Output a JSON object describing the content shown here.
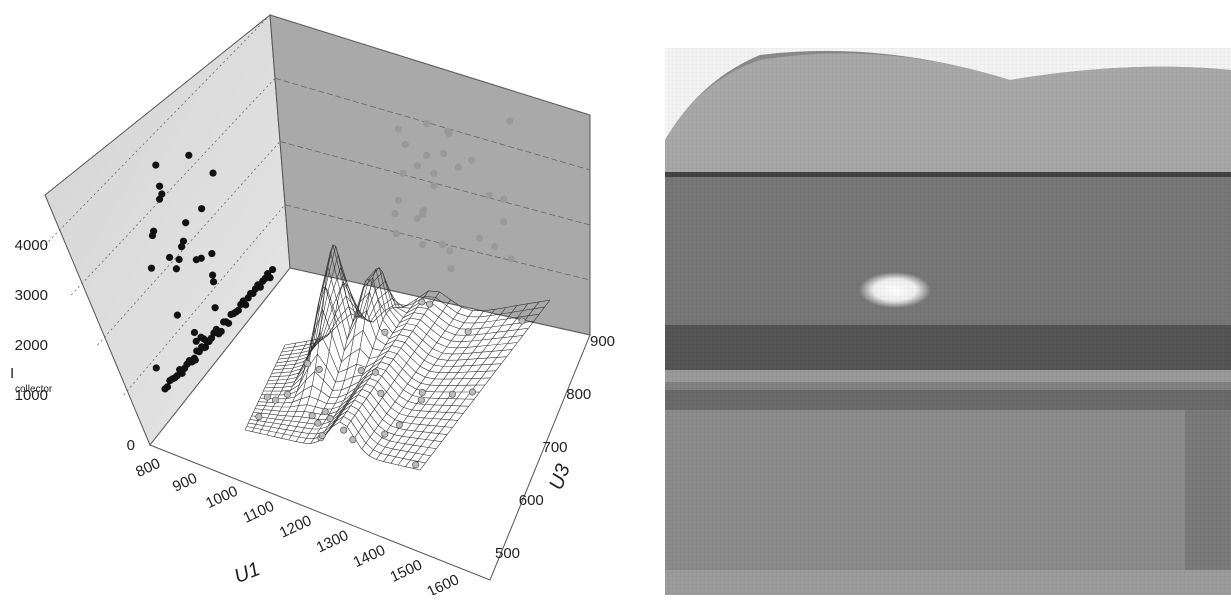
{
  "panel_a": {
    "z_axis": {
      "label": "I",
      "label_sub": "collector",
      "ticks": [
        0,
        1000,
        2000,
        3000,
        4000
      ]
    },
    "x_axis": {
      "label": "U1",
      "ticks": [
        800,
        900,
        1000,
        1100,
        1200,
        1300,
        1400,
        1500,
        1600
      ]
    },
    "y_axis": {
      "label": "U3",
      "ticks": [
        500,
        600,
        700,
        800,
        900
      ]
    }
  }
}
